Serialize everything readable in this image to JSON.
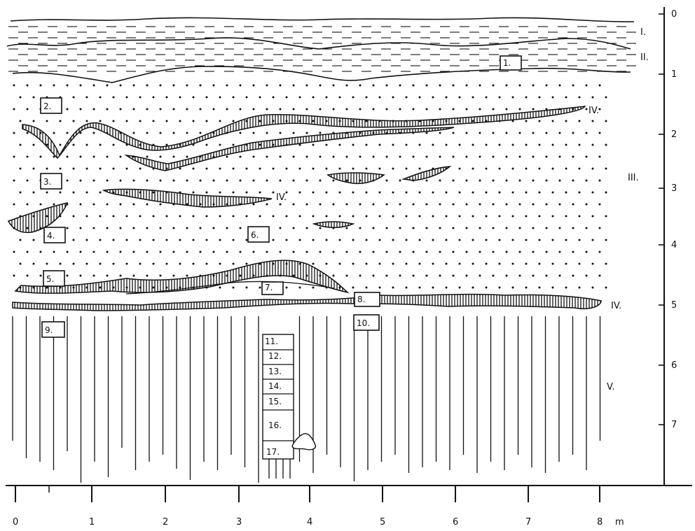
{
  "figure": {
    "horizontal_axis": {
      "ticks": [
        "0",
        "1",
        "2",
        "3",
        "4",
        "5",
        "6",
        "7",
        "8"
      ],
      "unit": "m"
    },
    "vertical_axis": {
      "ticks": [
        "0",
        "1",
        "2",
        "3",
        "4",
        "5",
        "6",
        "7"
      ]
    },
    "layer_labels": [
      {
        "id": "I",
        "text": "I."
      },
      {
        "id": "II",
        "text": "II."
      },
      {
        "id": "III",
        "text": "III."
      },
      {
        "id": "IVa",
        "text": "IV."
      },
      {
        "id": "IVb",
        "text": "IV."
      },
      {
        "id": "IVc",
        "text": "IV."
      },
      {
        "id": "V",
        "text": "V."
      }
    ],
    "sample_labels": [
      {
        "id": 1,
        "text": "1."
      },
      {
        "id": 2,
        "text": "2."
      },
      {
        "id": 3,
        "text": "3."
      },
      {
        "id": 4,
        "text": "4."
      },
      {
        "id": 5,
        "text": "5."
      },
      {
        "id": 6,
        "text": "6."
      },
      {
        "id": 7,
        "text": "7."
      },
      {
        "id": 8,
        "text": "8."
      },
      {
        "id": 9,
        "text": "9."
      },
      {
        "id": 10,
        "text": "10."
      },
      {
        "id": 11,
        "text": "11."
      },
      {
        "id": 12,
        "text": "12."
      },
      {
        "id": 13,
        "text": "13."
      },
      {
        "id": 14,
        "text": "14."
      },
      {
        "id": 15,
        "text": "15."
      },
      {
        "id": 16,
        "text": "16."
      },
      {
        "id": 17,
        "text": "17."
      }
    ],
    "colors": {
      "ink": "#111111",
      "paper": "#ffffff"
    }
  }
}
